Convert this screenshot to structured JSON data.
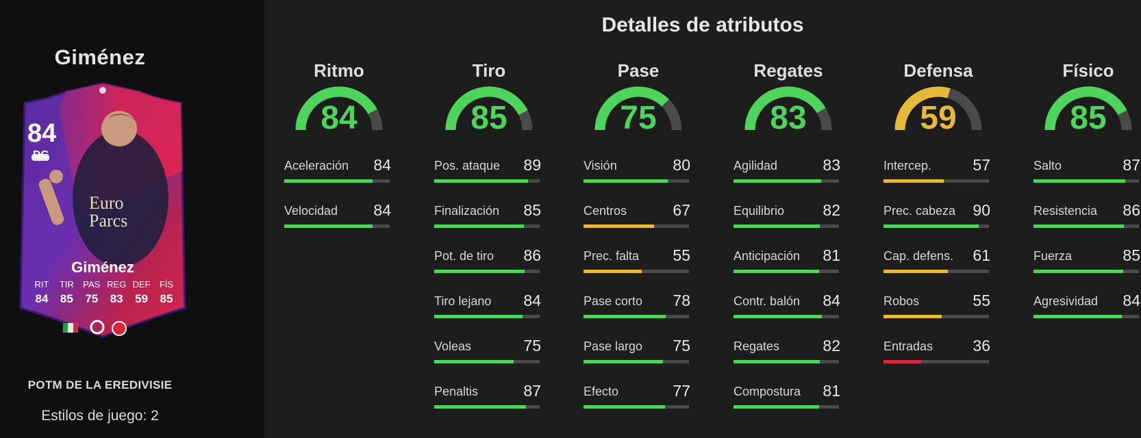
{
  "player": {
    "name": "Giménez",
    "card_name": "Giménez",
    "rating": "84",
    "position": "DC",
    "card_stats": [
      {
        "label": "RIT",
        "value": "84"
      },
      {
        "label": "TIR",
        "value": "85"
      },
      {
        "label": "PAS",
        "value": "75"
      },
      {
        "label": "REG",
        "value": "83"
      },
      {
        "label": "DEF",
        "value": "59"
      },
      {
        "label": "FÍS",
        "value": "85"
      }
    ],
    "shirt_text": [
      "Euro",
      "Parcs"
    ],
    "promo": "POTM DE LA EREDIVISIE",
    "playstyles": "Estilos de juego: 2"
  },
  "colors": {
    "green": "#4ed45b",
    "yellow": "#e6b93b",
    "red": "#d8263a",
    "track": "#4a4a4a"
  },
  "panel_title": "Detalles de atributos",
  "categories": [
    {
      "name": "Ritmo",
      "value": "84",
      "rating": 84,
      "attributes": [
        {
          "name": "Aceleración",
          "value": "84"
        },
        {
          "name": "Velocidad",
          "value": "84"
        }
      ]
    },
    {
      "name": "Tiro",
      "value": "85",
      "rating": 85,
      "attributes": [
        {
          "name": "Pos. ataque",
          "value": "89"
        },
        {
          "name": "Finalización",
          "value": "85"
        },
        {
          "name": "Pot. de tiro",
          "value": "86"
        },
        {
          "name": "Tiro lejano",
          "value": "84"
        },
        {
          "name": "Voleas",
          "value": "75"
        },
        {
          "name": "Penaltis",
          "value": "87"
        }
      ]
    },
    {
      "name": "Pase",
      "value": "75",
      "rating": 75,
      "attributes": [
        {
          "name": "Visión",
          "value": "80"
        },
        {
          "name": "Centros",
          "value": "67"
        },
        {
          "name": "Prec. falta",
          "value": "55"
        },
        {
          "name": "Pase corto",
          "value": "78"
        },
        {
          "name": "Pase largo",
          "value": "75"
        },
        {
          "name": "Efecto",
          "value": "77"
        }
      ]
    },
    {
      "name": "Regates",
      "value": "83",
      "rating": 83,
      "attributes": [
        {
          "name": "Agilidad",
          "value": "83"
        },
        {
          "name": "Equilibrio",
          "value": "82"
        },
        {
          "name": "Anticipación",
          "value": "81"
        },
        {
          "name": "Contr. balón",
          "value": "84"
        },
        {
          "name": "Regates",
          "value": "82"
        },
        {
          "name": "Compostura",
          "value": "81"
        }
      ]
    },
    {
      "name": "Defensa",
      "value": "59",
      "rating": 59,
      "attributes": [
        {
          "name": "Intercep.",
          "value": "57"
        },
        {
          "name": "Prec. cabeza",
          "value": "90"
        },
        {
          "name": "Cap. defens.",
          "value": "61"
        },
        {
          "name": "Robos",
          "value": "55"
        },
        {
          "name": "Entradas",
          "value": "36"
        }
      ]
    },
    {
      "name": "Físico",
      "value": "85",
      "rating": 85,
      "attributes": [
        {
          "name": "Salto",
          "value": "87"
        },
        {
          "name": "Resistencia",
          "value": "86"
        },
        {
          "name": "Fuerza",
          "value": "85"
        },
        {
          "name": "Agresividad",
          "value": "84"
        }
      ]
    }
  ]
}
